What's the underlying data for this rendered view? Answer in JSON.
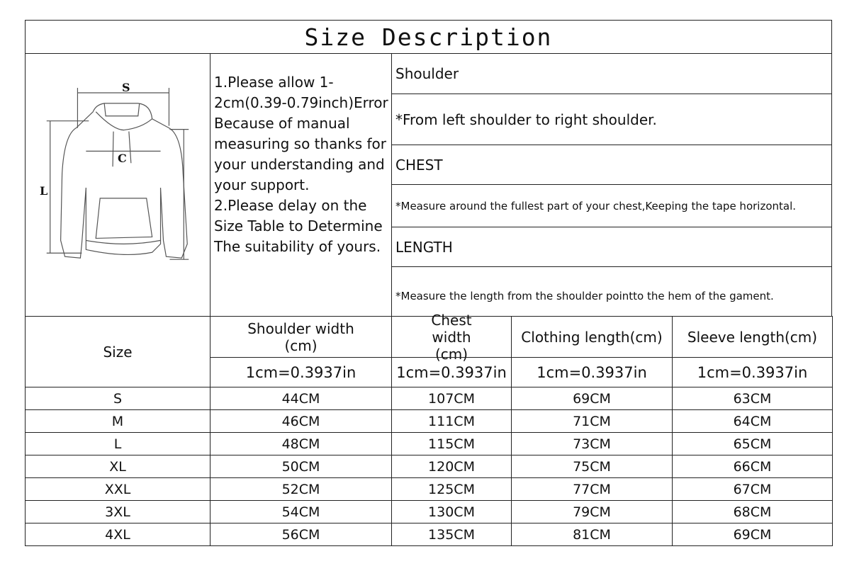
{
  "title": "Size Description",
  "diagram": {
    "labels": {
      "shoulder": "S",
      "chest": "C",
      "length": "L"
    }
  },
  "notes": [
    "1.Please allow 1-2cm(0.39-0.79inch)Error Because of manual measuring so thanks for your understanding and your support.",
    "2.Please delay on the Size Table to Determine The suitability of yours."
  ],
  "descriptions": [
    {
      "heading": "Shoulder",
      "text": "*From left shoulder to right shoulder."
    },
    {
      "heading": "CHEST",
      "text": "*Measure around the fullest part of your chest,Keeping the tape horizontal."
    },
    {
      "heading": "LENGTH",
      "text": "*Measure the length from the shoulder pointto the hem of the gament."
    }
  ],
  "table": {
    "headers": [
      "Size",
      "Shoulder width (cm)",
      "Chest width (cm)",
      "Clothing length(cm)",
      "Sleeve length(cm)"
    ],
    "conversion": "1cm=0.3937in",
    "rows": [
      [
        "S",
        "44CM",
        "107CM",
        "69CM",
        "63CM"
      ],
      [
        "M",
        "46CM",
        "111CM",
        "71CM",
        "64CM"
      ],
      [
        "L",
        "48CM",
        "115CM",
        "73CM",
        "65CM"
      ],
      [
        "XL",
        "50CM",
        "120CM",
        "75CM",
        "66CM"
      ],
      [
        "XXL",
        "52CM",
        "125CM",
        "77CM",
        "67CM"
      ],
      [
        "3XL",
        "54CM",
        "130CM",
        "79CM",
        "68CM"
      ],
      [
        "4XL",
        "56CM",
        "135CM",
        "81CM",
        "69CM"
      ]
    ]
  }
}
